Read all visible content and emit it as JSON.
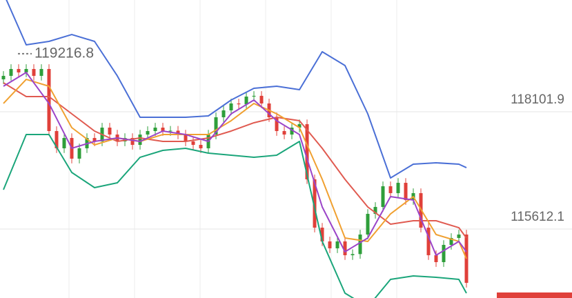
{
  "chart_data": {
    "type": "candlestick",
    "ylim": [
      114147.5,
      120474.6
    ],
    "yticks": [
      118101.9,
      115612.1
    ],
    "grid": true,
    "high_label": 119216.8,
    "up_color": "#2e9e3a",
    "down_color": "#e0403a",
    "open": [
      118790,
      118864,
      119010,
      118937,
      119010,
      118864,
      119010,
      117692,
      117326,
      117545,
      117106,
      117326,
      117545,
      117472,
      117765,
      117618,
      117472,
      117545,
      117399,
      117618,
      117692,
      117765,
      117692,
      117700,
      117618,
      117472,
      117399,
      117326,
      117618,
      117985,
      118131,
      118278,
      118260,
      118424,
      118440,
      118278,
      117985,
      117692,
      117618,
      117765,
      117838,
      116667,
      115641,
      115349,
      115202,
      115349,
      115056,
      115080,
      115495,
      115934,
      116081,
      116520,
      116374,
      116593,
      116227,
      116374,
      115641,
      115056,
      114909,
      115275,
      115422,
      115495
    ],
    "high": [
      118964,
      119110,
      119110,
      119110,
      119110,
      119110,
      119110,
      117792,
      117645,
      117645,
      117426,
      117645,
      117645,
      117865,
      117865,
      117718,
      117645,
      117645,
      117718,
      117792,
      117865,
      117865,
      117800,
      117800,
      117718,
      117572,
      117499,
      117718,
      118085,
      118231,
      118378,
      118378,
      118524,
      118540,
      118540,
      118378,
      118085,
      117792,
      117865,
      117938,
      117938,
      116767,
      115741,
      115449,
      115449,
      115449,
      115180,
      115595,
      116034,
      116181,
      116620,
      116620,
      116693,
      116693,
      116474,
      116474,
      115741,
      115156,
      115375,
      115522,
      115595,
      115595
    ],
    "low": [
      118690,
      118764,
      118837,
      118837,
      118764,
      118764,
      117592,
      117226,
      117226,
      117006,
      117006,
      117226,
      117372,
      117372,
      117518,
      117372,
      117372,
      117299,
      117299,
      117518,
      117592,
      117592,
      117592,
      117518,
      117372,
      117299,
      117226,
      117226,
      117518,
      117885,
      118031,
      118160,
      118160,
      118324,
      118178,
      117885,
      117592,
      117518,
      117518,
      117665,
      116567,
      115541,
      115249,
      115102,
      115102,
      114956,
      114956,
      114980,
      115395,
      115834,
      115981,
      116274,
      116274,
      116127,
      116127,
      115541,
      114956,
      114809,
      114809,
      115175,
      115322,
      114369
    ],
    "close": [
      118864,
      119010,
      118937,
      119010,
      118864,
      119010,
      117692,
      117326,
      117545,
      117106,
      117326,
      117545,
      117472,
      117765,
      117618,
      117472,
      117545,
      117399,
      117618,
      117692,
      117765,
      117692,
      117700,
      117618,
      117472,
      117399,
      117326,
      117618,
      117985,
      118131,
      118278,
      118260,
      118424,
      118440,
      118278,
      117985,
      117692,
      117618,
      117765,
      117838,
      116667,
      115641,
      115349,
      115202,
      115349,
      115056,
      115080,
      115495,
      115934,
      116081,
      116520,
      116374,
      116593,
      116227,
      116374,
      115641,
      115056,
      114909,
      115275,
      115422,
      115495,
      114469
    ],
    "lines": {
      "x": [
        0,
        3,
        6,
        9,
        12,
        15,
        18,
        21,
        24,
        27,
        30,
        33,
        36,
        39,
        42,
        45,
        48,
        51,
        54,
        57,
        60,
        61
      ],
      "series": [
        {
          "color": "#4a6fd6",
          "values": [
            120621,
            119523,
            119596,
            119742,
            119596,
            118864,
            117985,
            117985,
            117985,
            118014,
            118351,
            118600,
            118644,
            118571,
            119376,
            119083,
            118058,
            116696,
            116989,
            117018,
            116989,
            116915
          ]
        },
        {
          "color": "#1aa57a",
          "values": [
            116447,
            117618,
            117618,
            116813,
            116491,
            116593,
            117135,
            117282,
            117326,
            117223,
            117179,
            117135,
            117179,
            117472,
            115349,
            114250,
            113957,
            114543,
            114616,
            114587,
            114543,
            114250
          ]
        },
        {
          "color": "#e05a50",
          "values": [
            118717,
            118424,
            118424,
            118058,
            117692,
            117472,
            117545,
            117472,
            117472,
            117545,
            117692,
            117868,
            117985,
            117912,
            117326,
            116667,
            116081,
            115715,
            115788,
            115788,
            115641,
            115422
          ]
        },
        {
          "color": "#f0a030",
          "values": [
            118278,
            118790,
            118644,
            117765,
            117399,
            117545,
            117472,
            117618,
            117618,
            117618,
            117912,
            118278,
            118058,
            117765,
            116667,
            115422,
            115349,
            115934,
            116300,
            115495,
            115349,
            114982
          ]
        },
        {
          "color": "#9b44c8",
          "values": [
            118644,
            118937,
            118278,
            117326,
            117472,
            117545,
            117472,
            117692,
            117618,
            117472,
            118058,
            118351,
            117912,
            117618,
            116081,
            115129,
            115422,
            116300,
            116227,
            115056,
            115349,
            115129
          ]
        }
      ]
    }
  }
}
